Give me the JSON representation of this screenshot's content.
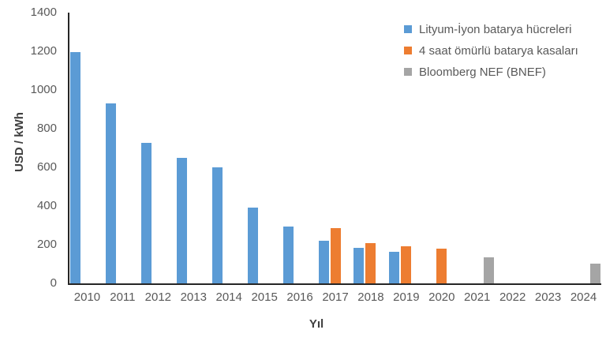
{
  "chart_data": {
    "type": "bar",
    "title": "",
    "xlabel": "Yıl",
    "ylabel": "USD / kWh",
    "categories": [
      "2010",
      "2011",
      "2012",
      "2013",
      "2014",
      "2015",
      "2016",
      "2017",
      "2018",
      "2019",
      "2020",
      "2021",
      "2022",
      "2023",
      "2024"
    ],
    "series": [
      {
        "name": "Lityum-İyon batarya hücreleri",
        "color": "#5B9BD5",
        "values": [
          1195,
          930,
          725,
          650,
          600,
          390,
          295,
          220,
          185,
          165,
          null,
          null,
          null,
          null,
          null
        ]
      },
      {
        "name": "4 saat ömürlü batarya kasaları",
        "color": "#ED7D31",
        "values": [
          null,
          null,
          null,
          null,
          null,
          null,
          null,
          285,
          210,
          190,
          180,
          null,
          null,
          null,
          null
        ]
      },
      {
        "name": "Bloomberg NEF (BNEF)",
        "color": "#A5A5A5",
        "values": [
          null,
          null,
          null,
          null,
          null,
          null,
          null,
          null,
          null,
          null,
          null,
          135,
          null,
          null,
          100
        ]
      }
    ],
    "ylim": [
      0,
      1400
    ],
    "ytick_step": 200,
    "grid": false,
    "legend_position": "top-right",
    "axis_color": "#262626",
    "tick_label_color": "#595959",
    "axis_title_color": "#404040"
  }
}
